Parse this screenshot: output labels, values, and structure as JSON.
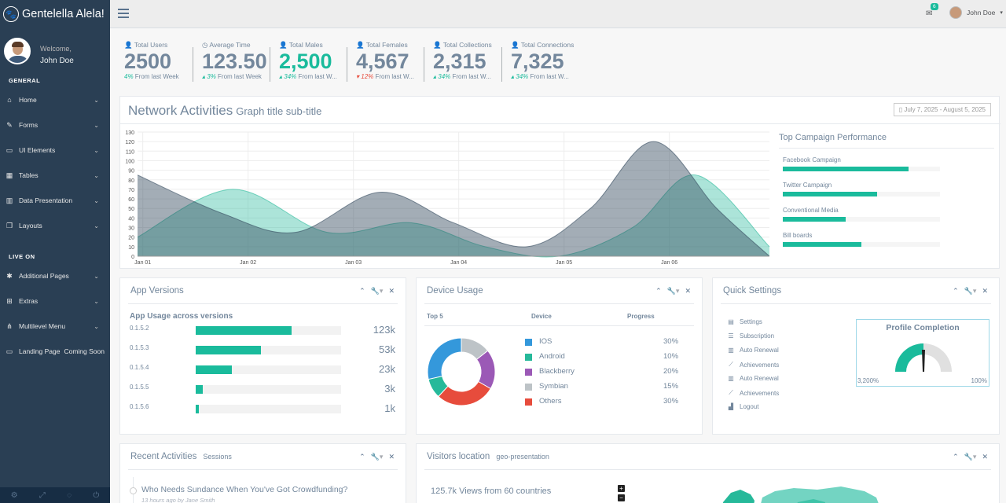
{
  "sidebar": {
    "brand": "Gentelella Alela!",
    "welcome": "Welcome,",
    "user": "John Doe",
    "general_title": "GENERAL",
    "live_title": "LIVE ON",
    "items": [
      {
        "label": "Home",
        "icon": "home-icon"
      },
      {
        "label": "Forms",
        "icon": "edit-icon"
      },
      {
        "label": "UI Elements",
        "icon": "desktop-icon"
      },
      {
        "label": "Tables",
        "icon": "table-icon"
      },
      {
        "label": "Data Presentation",
        "icon": "bar-chart-icon"
      },
      {
        "label": "Layouts",
        "icon": "clone-icon"
      },
      {
        "label": "Additional Pages",
        "icon": "bug-icon"
      },
      {
        "label": "Extras",
        "icon": "windows-icon"
      },
      {
        "label": "Multilevel Menu",
        "icon": "sitemap-icon"
      },
      {
        "label": "Landing Page",
        "extra": "Coming Soon",
        "icon": "laptop-icon"
      }
    ],
    "footer_icons": [
      "gear-icon",
      "fullscreen-icon",
      "eye-slash-icon",
      "power-icon"
    ]
  },
  "topnav": {
    "mail_count": "6",
    "user": "John Doe"
  },
  "tiles": [
    {
      "label": "Total Users",
      "value": "2500",
      "change": "4%",
      "suffix": " From last Week",
      "trend": "up",
      "highlight": false
    },
    {
      "label": "Average Time",
      "value": "123.50",
      "change": "3%",
      "suffix": " From last Week",
      "trend": "up",
      "highlight": false
    },
    {
      "label": "Total Males",
      "value": "2,500",
      "change": "34%",
      "suffix": " From last W...",
      "trend": "up",
      "highlight": true
    },
    {
      "label": "Total Females",
      "value": "4,567",
      "change": "12%",
      "suffix": " From last W...",
      "trend": "down",
      "highlight": false
    },
    {
      "label": "Total Collections",
      "value": "2,315",
      "change": "34%",
      "suffix": " From last W...",
      "trend": "up",
      "highlight": false
    },
    {
      "label": "Total Connections",
      "value": "7,325",
      "change": "34%",
      "suffix": " From last W...",
      "trend": "up",
      "highlight": false
    }
  ],
  "network": {
    "title": "Network Activities",
    "subtitle": "Graph title sub-title",
    "daterange": "July 7, 2025 - August 5, 2025"
  },
  "chart_data": {
    "type": "area",
    "x": [
      "Jan 01",
      "Jan 02",
      "Jan 03",
      "Jan 04",
      "Jan 05",
      "Jan 06"
    ],
    "y_ticks": [
      0,
      10,
      20,
      30,
      40,
      50,
      60,
      70,
      80,
      90,
      100,
      110,
      120,
      130
    ],
    "ylim": [
      0,
      130
    ],
    "grid": true,
    "series": [
      {
        "color": "#26B99A",
        "points": [
          [
            0,
            20
          ],
          [
            0.9,
            70
          ],
          [
            1.8,
            25
          ],
          [
            2.6,
            35
          ],
          [
            3.3,
            10
          ],
          [
            4.0,
            0
          ],
          [
            4.7,
            30
          ],
          [
            5.3,
            85
          ],
          [
            6.0,
            10
          ]
        ]
      },
      {
        "color": "#34495E",
        "points": [
          [
            0,
            85
          ],
          [
            0.8,
            45
          ],
          [
            1.5,
            25
          ],
          [
            2.3,
            67
          ],
          [
            3.0,
            35
          ],
          [
            3.7,
            10
          ],
          [
            4.3,
            50
          ],
          [
            4.9,
            120
          ],
          [
            5.5,
            50
          ],
          [
            6.0,
            0
          ]
        ]
      }
    ]
  },
  "campaigns": {
    "title": "Top Campaign Performance",
    "items": [
      {
        "name": "Facebook Campaign",
        "value": 80
      },
      {
        "name": "Twitter Campaign",
        "value": 60
      },
      {
        "name": "Conventional Media",
        "value": 40
      },
      {
        "name": "Bill boards",
        "value": 50
      }
    ]
  },
  "app_versions": {
    "title": "App Versions",
    "subtitle": "App Usage across versions",
    "rows": [
      {
        "version": "0.1.5.2",
        "count": "123k",
        "value": 66
      },
      {
        "version": "0.1.5.3",
        "count": "53k",
        "value": 45
      },
      {
        "version": "0.1.5.4",
        "count": "23k",
        "value": 25
      },
      {
        "version": "0.1.5.5",
        "count": "3k",
        "value": 5
      },
      {
        "version": "0.1.5.6",
        "count": "1k",
        "value": 2
      }
    ]
  },
  "device_usage": {
    "title": "Device Usage",
    "col_top": "Top 5",
    "col_device": "Device",
    "col_progress": "Progress",
    "rows": [
      {
        "name": "IOS",
        "percent": "30%",
        "color": "#3498DB"
      },
      {
        "name": "Android",
        "percent": "10%",
        "color": "#26B99A"
      },
      {
        "name": "Blackberry",
        "percent": "20%",
        "color": "#9B59B6"
      },
      {
        "name": "Symbian",
        "percent": "15%",
        "color": "#BDC3C7"
      },
      {
        "name": "Others",
        "percent": "30%",
        "color": "#E74C3C"
      }
    ]
  },
  "quick_settings": {
    "title": "Quick Settings",
    "items": [
      {
        "label": "Settings",
        "icon": "calendar-icon"
      },
      {
        "label": "Subscription",
        "icon": "list-icon"
      },
      {
        "label": "Auto Renewal",
        "icon": "bar-chart-icon"
      },
      {
        "label": "Achievements",
        "icon": "line-chart-icon"
      },
      {
        "label": "Auto Renewal",
        "icon": "bar-chart-icon"
      },
      {
        "label": "Achievements",
        "icon": "line-chart-icon"
      },
      {
        "label": "Logout",
        "icon": "area-chart-icon"
      }
    ],
    "profile_title": "Profile Completion",
    "gauge_min": "3,200%",
    "gauge_max": "100%"
  },
  "recent": {
    "title": "Recent Activities",
    "subtitle": "Sessions",
    "items": [
      {
        "title": "Who Needs Sundance When You've Got Crowdfunding?",
        "meta": "13 hours ago by Jane Smith"
      }
    ]
  },
  "visitors": {
    "title": "Visitors location",
    "subtitle": "geo-presentation",
    "views": "125.7k Views from 60 countries"
  }
}
